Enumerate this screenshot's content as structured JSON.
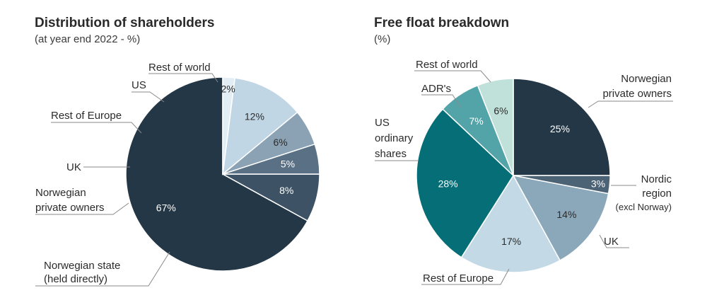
{
  "chart_data": [
    {
      "type": "pie",
      "title": "Distribution of shareholders",
      "subtitle": "(at year end 2022 - %)",
      "slices": [
        {
          "label": "Norwegian state (held directly)",
          "value": 67,
          "value_label": "67%",
          "color": "#243746"
        },
        {
          "label": "Norwegian private owners",
          "value": 8,
          "value_label": "8%",
          "color": "#3d5264"
        },
        {
          "label": "UK",
          "value": 5,
          "value_label": "5%",
          "color": "#5a7084"
        },
        {
          "label": "Rest of Europe",
          "value": 6,
          "value_label": "6%",
          "color": "#8aa2b4"
        },
        {
          "label": "US",
          "value": 12,
          "value_label": "12%",
          "color": "#c1d6e5"
        },
        {
          "label": "Rest of world",
          "value": 2,
          "value_label": "2%",
          "color": "#e3edf4"
        }
      ]
    },
    {
      "type": "pie",
      "title": "Free float breakdown",
      "subtitle": "(%)",
      "slices": [
        {
          "label": "Norwegian private owners",
          "value": 25,
          "value_label": "25%",
          "color": "#243746"
        },
        {
          "label": "Nordic region (excl Norway)",
          "value": 3,
          "value_label": "3%",
          "color": "#4c6275"
        },
        {
          "label": "UK",
          "value": 14,
          "value_label": "14%",
          "color": "#8ba8ba"
        },
        {
          "label": "Rest of Europe",
          "value": 17,
          "value_label": "17%",
          "color": "#c3dae6"
        },
        {
          "label": "US ordinary shares",
          "value": 28,
          "value_label": "28%",
          "color": "#056e76"
        },
        {
          "label": "ADR's",
          "value": 7,
          "value_label": "7%",
          "color": "#53a4a9"
        },
        {
          "label": "Rest of world",
          "value": 6,
          "value_label": "6%",
          "color": "#c0e1da"
        }
      ]
    }
  ],
  "labels": {
    "left": {
      "rest_of_world": "Rest of world",
      "us": "US",
      "rest_of_europe": "Rest of Europe",
      "uk": "UK",
      "norwegian_private_1": "Norwegian",
      "norwegian_private_2": "private owners",
      "norwegian_state_1": "Norwegian state",
      "norwegian_state_2": "(held directly)"
    },
    "right": {
      "rest_of_world": "Rest of world",
      "adrs": "ADR's",
      "us_1": "US",
      "us_2": "ordinary",
      "us_3": "shares",
      "norwegian_private_1": "Norwegian",
      "norwegian_private_2": "private owners",
      "nordic_1": "Nordic",
      "nordic_2": "region",
      "nordic_3": "(excl Norway)",
      "uk": "UK",
      "rest_of_europe": "Rest of Europe"
    }
  }
}
